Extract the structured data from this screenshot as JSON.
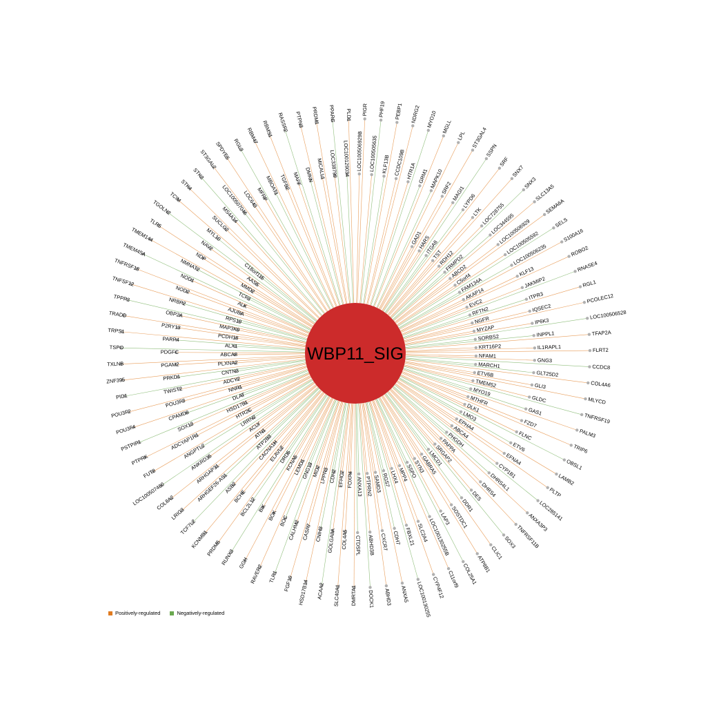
{
  "hub": {
    "label": "WBP11_SIG",
    "color": "#cc2b2b"
  },
  "colors": {
    "positive": "#e07b20",
    "negative": "#6aa84f",
    "node": "#b0b0b0"
  },
  "legend": {
    "positive": "Positively-regulated",
    "negative": "Negatively-regulated"
  },
  "genes": [
    "ST3GAL4",
    "SSPN",
    "SRF",
    "SNX7",
    "SNX3",
    "SLC13A5",
    "SEMA6A",
    "SELS",
    "S100A16",
    "ROBO2",
    "RNASE4",
    "RGL1",
    "PCOLEC12",
    "LOC100506528",
    "TFAP2A",
    "FLRT2",
    "CCDC8",
    "COL4A6",
    "MLYCD",
    "TNFRSF19",
    "PALM3",
    "TRIP6",
    "OBSL1",
    "LAMB2",
    "PLTP",
    "LOC285141",
    "ANXA3P3",
    "TNFRSF11B",
    "SOX3",
    "CLIC1",
    "ATP8B1",
    "COL25A1",
    "C11orf9",
    "CYP4F12",
    "LOC100130255",
    "ANXA5",
    "ABHD3",
    "DOCK1",
    "DMRTA1",
    "SLC40A1",
    "ACAA2",
    "HSD17B14",
    "FGF10",
    "TLR1",
    "RAVER2",
    "GGH",
    "RUNX3",
    "PRDM5",
    "KCNMB1",
    "TCF7L2",
    "LRIG3",
    "COL8A2",
    "LOC100507460",
    "FUT8",
    "PTPRK",
    "PSTPIP1",
    "POU3F4",
    "POU3F2",
    "PID1",
    "ZNF395",
    "TXLNB",
    "TSPO",
    "TRPS1",
    "TRADD",
    "TPPP3",
    "TNFSF12",
    "TNFRSF18",
    "TMEM45A",
    "TMEM144",
    "TLR5",
    "TGOLN2",
    "TCIM",
    "STK4",
    "STK3",
    "ST3GAL2",
    "SPDYE5",
    "RGL3",
    "RBM47",
    "RBMS1",
    "RASSF2",
    "PTPN3",
    "PRDM1",
    "PPARG",
    "PLD1",
    "PIGR",
    "PHF19",
    "PEBP1",
    "NDRG2",
    "MYO10",
    "MGLL",
    "LPL",
    "MAPK10",
    "SRF2",
    "MAGI1",
    "LYPD6",
    "LTK",
    "LOC728755",
    "LOC344595",
    "LOC100506929",
    "LOC100505592",
    "LOC100506235",
    "KLF13",
    "JAKMIP2",
    "ITPR3",
    "IQSEC2",
    "IP6K3",
    "INPPL1",
    "IL1RAPL1",
    "GNG3",
    "GLT25D2",
    "GLI3",
    "GLDC",
    "GAS1",
    "FZD7",
    "FLNC",
    "ETV6",
    "EFNA4",
    "CYP1B1",
    "DHRS4L1",
    "DHRS4",
    "DES",
    "DDR1",
    "SOSTDC1",
    "LAP3",
    "LOC100130255B",
    "SLC2A4",
    "FBXL21",
    "CDH7",
    "CXCR7",
    "ABHD3B",
    "CTDSPL",
    "COL4A5",
    "GOLGA8A",
    "CNIH3",
    "CASP7",
    "CALHM2",
    "BOC",
    "BOK",
    "BIK",
    "BCL2L12",
    "BCHE",
    "ASB2",
    "ARHGEF26-AS1",
    "ARHGAP31",
    "ANKRD35",
    "ANGPTL2",
    "ADCYAP1R1",
    "SOX13",
    "CPAMD8",
    "POU3F3",
    "TWIST2",
    "PRKD1",
    "PGAM2",
    "PDGFC",
    "PARP4",
    "P2RY13",
    "OBP2A",
    "NRBP2",
    "NOD2",
    "NOD1",
    "NMNAT2",
    "NDP",
    "NAV2",
    "MYL10",
    "SUCLG2",
    "MS4A14",
    "LOC100507046",
    "LOC643",
    "MFRP",
    "MBOAT1",
    "TGFB2",
    "MAFF",
    "DMKN",
    "MICALL1",
    "LOC338799",
    "LOC100129034",
    "LOC100506929B",
    "LOC100505635",
    "KLF13B",
    "CCDC109B",
    "HTR1A",
    "GRM1",
    "GAD1",
    "HARS",
    "ITGA8",
    "TST",
    "RDH12",
    "FRMPD2",
    "ABCD2",
    "C5orf4",
    "FAM134A",
    "AKAP14",
    "EVC2",
    "RFTN2",
    "NGFR",
    "MYZAP",
    "SORBS2",
    "KRT16P2",
    "NFAM1",
    "MARCH1",
    "ETV6B",
    "TMEM52",
    "MYO19",
    "MTHFR",
    "DLK1",
    "LMO3",
    "EPHA4",
    "ABCA4",
    "PHGDH",
    "PAPPA",
    "SRGAP2",
    "LMCD1",
    "GABRA5",
    "SYN3",
    "SSPO",
    "MPP4",
    "LHX4",
    "RGS7",
    "SAMD3",
    "PTPRN2",
    "ANXA13",
    "FOXP4",
    "EFHC2",
    "CDH2",
    "LPPR3",
    "MID2",
    "GNG13",
    "LEMD1",
    "KCNA5",
    "DRD5",
    "ELAVL2",
    "CACNA1H",
    "ATP2B3",
    "ATN1",
    "ACLY",
    "LRRN2",
    "HTR2C",
    "HSD17B1",
    "DLAT",
    "NNR1",
    "ADCY2",
    "CNTN3",
    "PLXNA2",
    "ABCA8",
    "ALX1",
    "PCDH18",
    "MAP3K9",
    "RPS19",
    "AJUBA",
    "ALK",
    "TCF3",
    "MMD2",
    "AASS",
    "C18orf115"
  ]
}
